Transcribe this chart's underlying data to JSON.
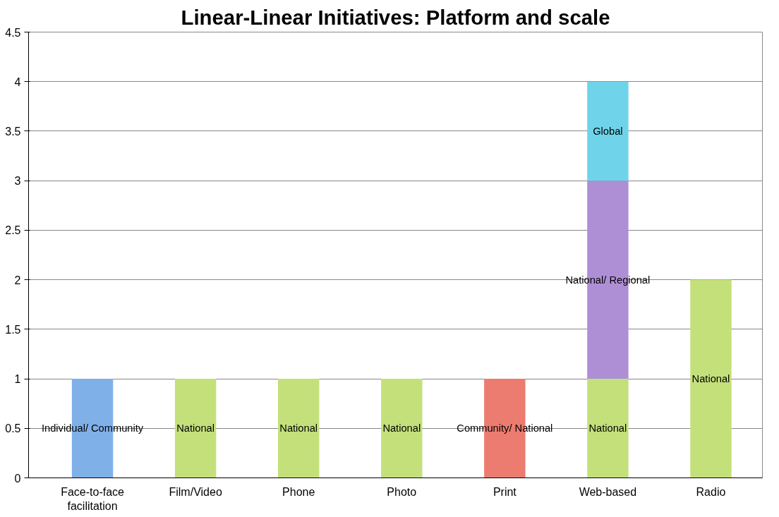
{
  "chart_data": {
    "type": "bar",
    "title": "Linear-Linear Initiatives: Platform and scale",
    "categories": [
      "Face-to-face facilitation",
      "Film/Video",
      "Phone",
      "Photo",
      "Print",
      "Web-based",
      "Radio"
    ],
    "stacked": true,
    "series": [
      {
        "name": "Individual/ Community",
        "color": "#7fb0e8",
        "values": [
          1,
          0,
          0,
          0,
          0,
          0,
          0
        ]
      },
      {
        "name": "National",
        "color": "#c4e07a",
        "values": [
          0,
          1,
          1,
          1,
          0,
          1,
          2
        ]
      },
      {
        "name": "Community/ National",
        "color": "#ec7c70",
        "values": [
          0,
          0,
          0,
          0,
          1,
          0,
          0
        ]
      },
      {
        "name": "National/ Regional",
        "color": "#ae8fd6",
        "values": [
          0,
          0,
          0,
          0,
          0,
          2,
          0
        ]
      },
      {
        "name": "Global",
        "color": "#6fd4ea",
        "values": [
          0,
          0,
          0,
          0,
          0,
          1,
          0
        ]
      }
    ],
    "ylim": [
      0,
      4.5
    ],
    "yticks": [
      0,
      0.5,
      1,
      1.5,
      2,
      2.5,
      3,
      3.5,
      4,
      4.5
    ],
    "grid": "y"
  }
}
